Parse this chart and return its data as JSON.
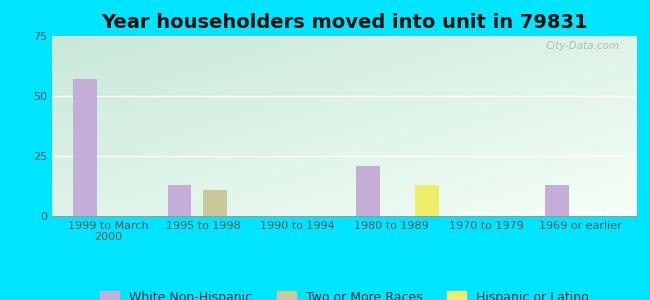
{
  "title": "Year householders moved into unit in 79831",
  "categories": [
    "1999 to March\n2000",
    "1995 to 1998",
    "1990 to 1994",
    "1980 to 1989",
    "1970 to 1979",
    "1969 or earlier"
  ],
  "series": {
    "White Non-Hispanic": [
      57,
      13,
      0,
      21,
      0,
      13
    ],
    "Two or More Races": [
      0,
      11,
      0,
      0,
      0,
      0
    ],
    "Hispanic or Latino": [
      0,
      0,
      0,
      13,
      0,
      0
    ]
  },
  "colors": {
    "White Non-Hispanic": "#c4aed8",
    "Two or More Races": "#c8c898",
    "Hispanic or Latino": "#eded6a"
  },
  "ylim": [
    0,
    75
  ],
  "yticks": [
    0,
    25,
    50,
    75
  ],
  "bar_width": 0.25,
  "background_color": "#00e5ff",
  "watermark": "City-Data.com",
  "title_fontsize": 14,
  "legend_fontsize": 9,
  "tick_fontsize": 8,
  "grad_top_left": "#c8e8d8",
  "grad_bottom_right": "#f0fff8"
}
